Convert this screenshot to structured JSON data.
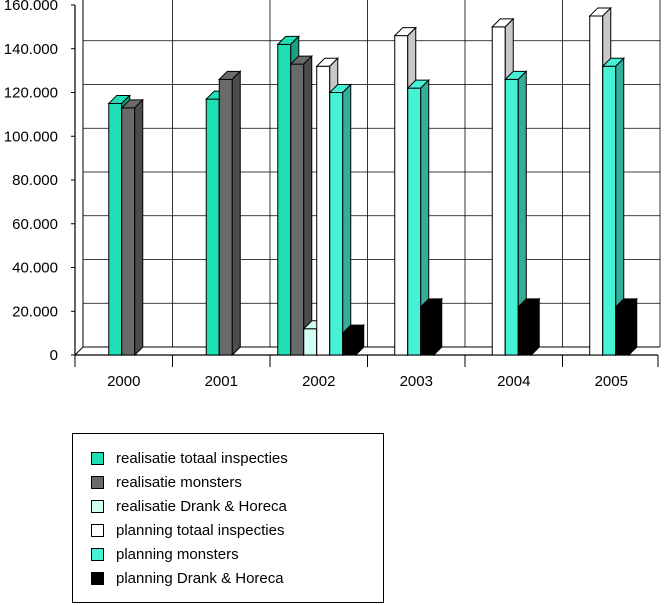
{
  "chart_data": {
    "type": "bar",
    "style": "3d-clustered",
    "title": "",
    "xlabel": "",
    "ylabel": "",
    "ylim": [
      0,
      160000
    ],
    "yticks": [
      0,
      20000,
      40000,
      60000,
      80000,
      100000,
      120000,
      140000,
      160000
    ],
    "ytick_labels": [
      "0",
      "20.000",
      "40.000",
      "60.000",
      "80.000",
      "100.000",
      "120.000",
      "140.000",
      "160.000"
    ],
    "categories": [
      "2000",
      "2001",
      "2002",
      "2003",
      "2004",
      "2005"
    ],
    "grid": true,
    "legend_position": "bottom-left",
    "series": [
      {
        "name": "realisatie totaal inspecties",
        "color": "#1ee0b4",
        "values": [
          115000,
          117000,
          142000,
          null,
          null,
          null
        ]
      },
      {
        "name": "realisatie monsters",
        "color": "#6a6a6a",
        "values": [
          113000,
          126000,
          133000,
          null,
          null,
          null
        ]
      },
      {
        "name": "realisatie Drank & Horeca",
        "color": "#cffff2",
        "values": [
          null,
          null,
          12000,
          null,
          null,
          null
        ]
      },
      {
        "name": "planning totaal inspecties",
        "color": "#ffffff",
        "values": [
          null,
          null,
          132000,
          146000,
          150000,
          155000
        ]
      },
      {
        "name": "planning monsters",
        "color": "#46f2d6",
        "values": [
          null,
          null,
          120000,
          122000,
          126000,
          132000
        ]
      },
      {
        "name": "planning Drank & Horeca",
        "color": "#000000",
        "values": [
          null,
          null,
          10000,
          22000,
          22000,
          22000
        ]
      }
    ]
  }
}
